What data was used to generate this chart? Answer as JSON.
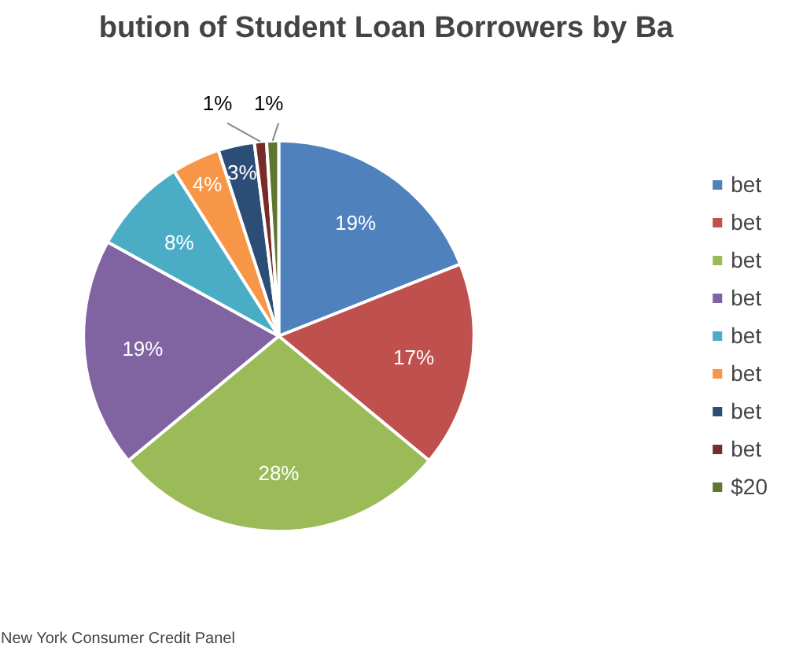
{
  "chart_data": {
    "type": "pie",
    "title": "bution of Student Loan Borrowers by Ba",
    "categories": [
      "bet",
      "bet",
      "bet",
      "bet",
      "bet",
      "bet",
      "bet",
      "bet",
      "$20"
    ],
    "values": [
      19,
      17,
      28,
      19,
      8,
      4,
      3,
      1,
      1
    ],
    "colors": [
      "#4f81bd",
      "#c0504d",
      "#9bbb59",
      "#8064a2",
      "#4bacc6",
      "#f79646",
      "#2c4d75",
      "#772c2a",
      "#5f7530"
    ],
    "value_labels": [
      "19%",
      "17%",
      "28%",
      "19%",
      "8%",
      "4%",
      "3%",
      "1%",
      "1%"
    ],
    "legend": "right",
    "annotations": [
      "New York Consumer Credit Panel"
    ]
  }
}
